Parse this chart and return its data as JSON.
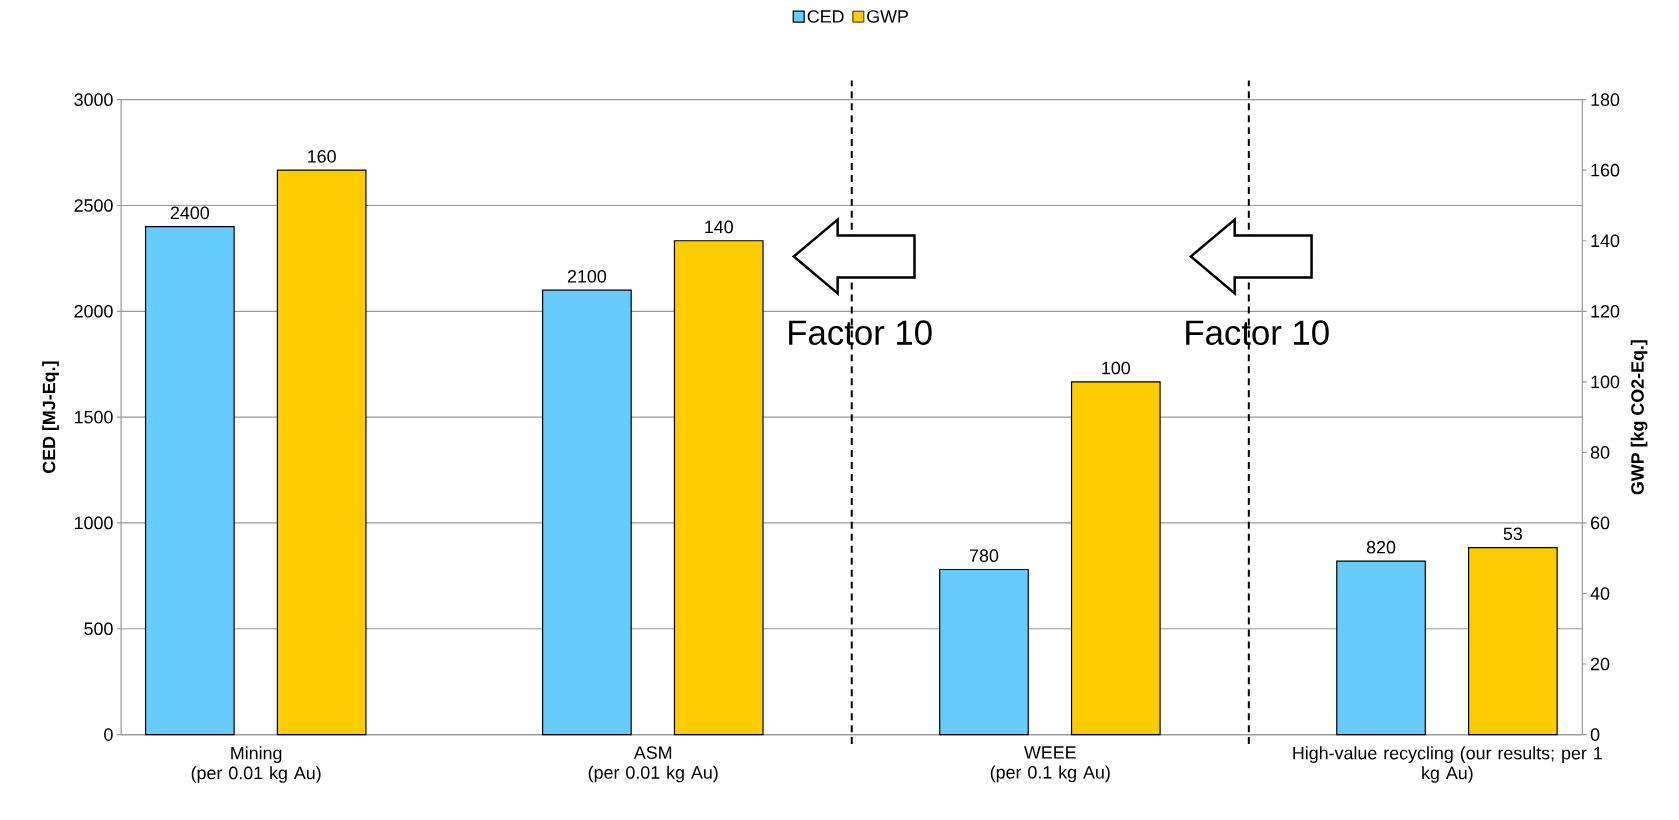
{
  "chart_data": {
    "type": "bar",
    "categories": [
      "Mining\n(per 0.01 kg Au)",
      "ASM\n(per 0.01 kg Au)",
      "WEEE\n(per 0.1 kg Au)",
      "High-value recycling (our results; per 1\nkg Au)"
    ],
    "series": [
      {
        "name": "CED",
        "color": "#66ccff",
        "values": [
          2400,
          2100,
          780,
          820
        ]
      },
      {
        "name": "GWP",
        "color": "#ffcc00",
        "values": [
          160,
          140,
          100,
          53
        ],
        "axis": "y2"
      }
    ],
    "ylabel": "CED [MJ-Eq.]",
    "y2label": "GWP [kg CO2-Eq.]",
    "ylim": [
      0,
      3000
    ],
    "yticks": [
      0,
      500,
      1000,
      1500,
      2000,
      2500,
      3000
    ],
    "y2lim": [
      0,
      180
    ],
    "y2ticks": [
      0,
      20,
      40,
      60,
      80,
      100,
      120,
      140,
      160,
      180
    ],
    "data_labels": true,
    "legend": "top",
    "grid": "y",
    "annotations": [
      "Factor 10",
      "Factor 10"
    ]
  }
}
